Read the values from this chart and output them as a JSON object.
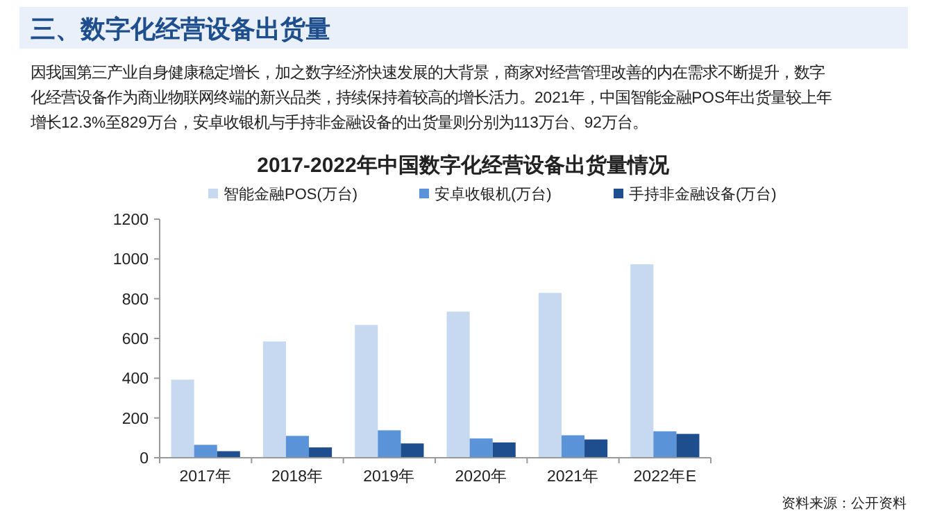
{
  "chart_data": {
    "type": "bar",
    "title": "2017-2022年中国数字化经营设备出货量情况",
    "categories": [
      "2017年",
      "2018年",
      "2019年",
      "2020年",
      "2021年",
      "2022年E"
    ],
    "series": [
      {
        "name": "智能金融POS(万台)",
        "color": "#c6d9f1",
        "values": [
          393,
          585,
          668,
          735,
          829,
          973
        ]
      },
      {
        "name": "安卓收银机(万台)",
        "color": "#5b93d8",
        "values": [
          65,
          110,
          138,
          97,
          113,
          133
        ]
      },
      {
        "name": "手持非金融设备(万台)",
        "color": "#1f4e8f",
        "values": [
          33,
          52,
          72,
          77,
          92,
          120
        ]
      }
    ],
    "ylim": [
      0,
      1200
    ],
    "yticks": [
      0,
      200,
      400,
      600,
      800,
      1000,
      1200
    ],
    "grid": false,
    "legend": "top",
    "annotations": [
      "三、数字化经营设备出货量",
      "因我国第三产业自身健康稳定增长，加之数字经济快速发展的大背景，商家对经营管理改善的内在需求不断提升，数字",
      "化经营设备作为商业物联网终端的新兴品类，持续保持着较高的增长活力。2021年，中国智能金融POS年出货量较上年",
      "增长12.3%至829万台，安卓收银机与手持非金融设备的出货量则分别为113万台、92万台。",
      "资料来源：公开资料"
    ]
  }
}
